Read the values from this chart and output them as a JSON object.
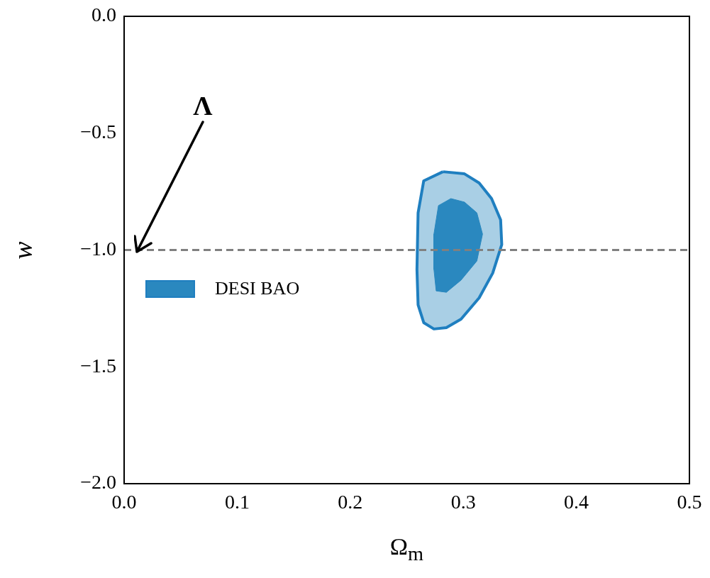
{
  "chart_data": {
    "type": "area",
    "xlabel": "Ω$_{m}$",
    "ylabel": "w",
    "xlim": [
      0,
      0.5
    ],
    "ylim": [
      -2,
      0
    ],
    "xticks": [
      {
        "value": 0,
        "label": "0.0"
      },
      {
        "value": 0.1,
        "label": "0.1"
      },
      {
        "value": 0.2,
        "label": "0.2"
      },
      {
        "value": 0.3,
        "label": "0.3"
      },
      {
        "value": 0.4,
        "label": "0.4"
      },
      {
        "value": 0.5,
        "label": "0.5"
      }
    ],
    "yticks": [
      {
        "value": -2,
        "label": "−2.0"
      },
      {
        "value": -1.5,
        "label": "−1.5"
      },
      {
        "value": -1,
        "label": "−1.0"
      },
      {
        "value": -0.5,
        "label": "−0.5"
      },
      {
        "value": 0,
        "label": "0.0"
      }
    ],
    "series": [
      {
        "color": "#a9cfe5",
        "x": [
          0.282,
          0.265,
          0.26,
          0.259,
          0.26,
          0.265,
          0.274,
          0.285,
          0.298,
          0.314,
          0.326,
          0.334,
          0.333,
          0.325,
          0.314,
          0.301,
          0.282
        ],
        "values": [
          -0.665,
          -0.704,
          -0.841,
          -1.083,
          -1.235,
          -1.311,
          -1.338,
          -1.332,
          -1.296,
          -1.205,
          -1.099,
          -0.977,
          -0.871,
          -0.78,
          -0.713,
          -0.674,
          -0.665
        ]
      },
      {
        "name": "DESI BAO",
        "color": "#2a88bf",
        "x": [
          0.289,
          0.278,
          0.274,
          0.274,
          0.276,
          0.285,
          0.298,
          0.312,
          0.317,
          0.312,
          0.301,
          0.289
        ],
        "values": [
          -0.78,
          -0.81,
          -0.932,
          -1.083,
          -1.175,
          -1.181,
          -1.129,
          -1.047,
          -0.932,
          -0.841,
          -0.795,
          -0.78
        ]
      }
    ],
    "ref_lines": [
      {
        "axis": "y",
        "value": -1,
        "color": "#808080",
        "line_style": "dashed"
      }
    ],
    "annotations": [
      {
        "text": "Λ",
        "x": 0.01,
        "y": -1
      }
    ],
    "legend": "center left",
    "grid": false
  }
}
